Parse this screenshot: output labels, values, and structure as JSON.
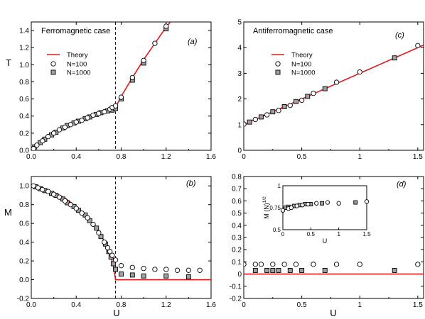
{
  "figure": {
    "y_labels": {
      "T": "T",
      "M": "M"
    },
    "x_label": "U",
    "legend": {
      "theory": "Theory",
      "n100": "N=100",
      "n1000": "N=1000"
    },
    "colors": {
      "theory": "#e31a1c",
      "square_fill": "#a0a0a0",
      "axis": "#000000"
    }
  },
  "chart_data": [
    {
      "id": "a",
      "type": "scatter",
      "title": "Ferromagnetic case",
      "tag": "(a)",
      "xlabel": "U",
      "ylabel": "T",
      "xlim": [
        0,
        1.6
      ],
      "ylim": [
        0,
        1.5
      ],
      "xticks": [
        "0.0",
        "0.4",
        "0.8",
        "1.2",
        "1.6"
      ],
      "yticks": [
        "0.0",
        "0.2",
        "0.4",
        "0.6",
        "0.8",
        "1.0",
        "1.2",
        "1.4"
      ],
      "vline": 0.75,
      "legend_position": "upper-left",
      "series": [
        {
          "name": "Theory",
          "kind": "line",
          "x": [
            0.0,
            0.05,
            0.1,
            0.2,
            0.3,
            0.4,
            0.5,
            0.6,
            0.7,
            0.75,
            0.8,
            0.9,
            1.0,
            1.1,
            1.2,
            1.25
          ],
          "y": [
            0.0,
            0.07,
            0.13,
            0.22,
            0.28,
            0.34,
            0.39,
            0.43,
            0.47,
            0.5,
            0.63,
            0.85,
            1.06,
            1.25,
            1.44,
            1.52
          ]
        },
        {
          "name": "N=100",
          "kind": "circle",
          "x": [
            0.02,
            0.05,
            0.1,
            0.15,
            0.2,
            0.25,
            0.3,
            0.35,
            0.4,
            0.45,
            0.5,
            0.55,
            0.6,
            0.65,
            0.7,
            0.72,
            0.75,
            0.8,
            0.9,
            1.0,
            1.1,
            1.2
          ],
          "y": [
            0.02,
            0.06,
            0.11,
            0.16,
            0.2,
            0.24,
            0.27,
            0.3,
            0.33,
            0.35,
            0.38,
            0.41,
            0.43,
            0.45,
            0.48,
            0.5,
            0.52,
            0.62,
            0.85,
            1.05,
            1.25,
            1.45
          ]
        },
        {
          "name": "N=1000",
          "kind": "square",
          "x": [
            0.03,
            0.08,
            0.12,
            0.18,
            0.22,
            0.28,
            0.32,
            0.38,
            0.42,
            0.48,
            0.52,
            0.58,
            0.62,
            0.68,
            0.72,
            0.75,
            0.8,
            0.9,
            1.0,
            1.2
          ],
          "y": [
            0.04,
            0.09,
            0.13,
            0.18,
            0.21,
            0.26,
            0.29,
            0.32,
            0.34,
            0.37,
            0.39,
            0.42,
            0.44,
            0.46,
            0.47,
            0.49,
            0.6,
            0.82,
            1.02,
            1.42
          ]
        }
      ]
    },
    {
      "id": "b",
      "type": "scatter",
      "title": "",
      "tag": "(b)",
      "xlabel": "U",
      "ylabel": "M",
      "xlim": [
        0,
        1.6
      ],
      "ylim": [
        -0.2,
        1.1
      ],
      "xticks": [
        "0.0",
        "0.4",
        "0.8",
        "1.2",
        "1.6"
      ],
      "yticks": [
        "-0.2",
        "0.0",
        "0.2",
        "0.4",
        "0.6",
        "0.8",
        "1.0"
      ],
      "vline": 0.75,
      "series": [
        {
          "name": "Theory",
          "kind": "line",
          "x": [
            0.0,
            0.1,
            0.2,
            0.3,
            0.4,
            0.5,
            0.6,
            0.65,
            0.7,
            0.73,
            0.75,
            0.75,
            1.6
          ],
          "y": [
            1.0,
            0.97,
            0.93,
            0.87,
            0.78,
            0.67,
            0.51,
            0.41,
            0.28,
            0.15,
            0.0,
            0.0,
            0.0
          ]
        },
        {
          "name": "N=100",
          "kind": "circle",
          "x": [
            0.02,
            0.06,
            0.1,
            0.15,
            0.2,
            0.25,
            0.3,
            0.35,
            0.4,
            0.45,
            0.5,
            0.55,
            0.6,
            0.65,
            0.68,
            0.7,
            0.72,
            0.75,
            0.8,
            0.9,
            1.0,
            1.1,
            1.2,
            1.3,
            1.4,
            1.5
          ],
          "y": [
            1.0,
            0.98,
            0.96,
            0.94,
            0.91,
            0.88,
            0.84,
            0.8,
            0.76,
            0.71,
            0.66,
            0.59,
            0.5,
            0.4,
            0.34,
            0.3,
            0.26,
            0.21,
            0.15,
            0.13,
            0.12,
            0.11,
            0.11,
            0.1,
            0.1,
            0.1
          ]
        },
        {
          "name": "N=1000",
          "kind": "square",
          "x": [
            0.04,
            0.08,
            0.12,
            0.18,
            0.22,
            0.28,
            0.32,
            0.38,
            0.42,
            0.48,
            0.52,
            0.58,
            0.62,
            0.66,
            0.69,
            0.71,
            0.73,
            0.75,
            0.8,
            0.9,
            1.0,
            1.2,
            1.4
          ],
          "y": [
            0.99,
            0.97,
            0.95,
            0.92,
            0.9,
            0.86,
            0.82,
            0.78,
            0.74,
            0.69,
            0.63,
            0.55,
            0.46,
            0.38,
            0.3,
            0.24,
            0.17,
            0.11,
            0.06,
            0.05,
            0.04,
            0.04,
            0.03
          ]
        }
      ]
    },
    {
      "id": "c",
      "type": "scatter",
      "title": "Antiferromagnetic case",
      "tag": "(c)",
      "xlabel": "U",
      "ylabel": "",
      "xlim": [
        0,
        1.55
      ],
      "ylim": [
        0,
        5
      ],
      "xticks": [
        "0",
        "0.5",
        "1",
        "1.5"
      ],
      "yticks": [
        "0",
        "1",
        "2",
        "3",
        "4",
        "5"
      ],
      "legend_position": "upper-left",
      "series": [
        {
          "name": "Theory",
          "kind": "line",
          "x": [
            0.0,
            1.55
          ],
          "y": [
            1.0,
            4.1
          ]
        },
        {
          "name": "N=100",
          "kind": "circle",
          "x": [
            0.0,
            0.1,
            0.2,
            0.3,
            0.4,
            0.5,
            0.6,
            0.8,
            1.0,
            1.5
          ],
          "y": [
            1.02,
            1.2,
            1.38,
            1.55,
            1.75,
            1.95,
            2.22,
            2.65,
            3.05,
            4.08
          ]
        },
        {
          "name": "N=1000",
          "kind": "square",
          "x": [
            0.05,
            0.15,
            0.25,
            0.35,
            0.45,
            0.55,
            0.7,
            1.3
          ],
          "y": [
            1.1,
            1.3,
            1.5,
            1.7,
            1.9,
            2.1,
            2.4,
            3.6
          ]
        }
      ]
    },
    {
      "id": "d",
      "type": "scatter",
      "title": "",
      "tag": "(d)",
      "xlabel": "U",
      "ylabel": "",
      "xlim": [
        0,
        1.55
      ],
      "ylim": [
        -0.2,
        0.8
      ],
      "xticks": [
        "0",
        "0.5",
        "1",
        "1.5"
      ],
      "yticks": [
        "-0.2",
        "-0.1",
        "0",
        "0.1",
        "0.2",
        "0.3",
        "0.4",
        "0.5",
        "0.6",
        "0.7",
        "0.8"
      ],
      "series": [
        {
          "name": "Theory",
          "kind": "line",
          "x": [
            0.0,
            1.55
          ],
          "y": [
            0.0,
            0.0
          ]
        },
        {
          "name": "N=100",
          "kind": "circle",
          "x": [
            0.0,
            0.1,
            0.15,
            0.25,
            0.35,
            0.45,
            0.6,
            0.8,
            1.0,
            1.5
          ],
          "y": [
            0.08,
            0.08,
            0.08,
            0.08,
            0.08,
            0.08,
            0.08,
            0.08,
            0.08,
            0.08
          ]
        },
        {
          "name": "N=1000",
          "kind": "square",
          "x": [
            0.1,
            0.2,
            0.25,
            0.3,
            0.4,
            0.5,
            0.7,
            1.3
          ],
          "y": [
            0.03,
            0.03,
            0.03,
            0.03,
            0.03,
            0.03,
            0.03,
            0.03
          ]
        }
      ],
      "inset": {
        "xlabel": "U",
        "ylabel": "M (N)",
        "ylabel_sup": "1/2",
        "xlim": [
          0,
          1.5
        ],
        "ylim": [
          0.5,
          1.0
        ],
        "xticks": [
          "0",
          "0.5",
          "1",
          "1.5"
        ],
        "yticks": [
          "0.5",
          "0.75",
          "1"
        ],
        "series": [
          {
            "name": "N=100",
            "kind": "circle",
            "x": [
              0.0,
              0.1,
              0.15,
              0.25,
              0.35,
              0.45,
              0.6,
              0.8,
              1.0,
              1.5
            ],
            "y": [
              0.72,
              0.74,
              0.75,
              0.77,
              0.78,
              0.79,
              0.8,
              0.81,
              0.8,
              0.82
            ]
          },
          {
            "name": "N=1000",
            "kind": "square",
            "x": [
              0.05,
              0.1,
              0.2,
              0.3,
              0.4,
              0.5,
              0.7,
              1.3
            ],
            "y": [
              0.75,
              0.76,
              0.77,
              0.78,
              0.79,
              0.79,
              0.8,
              0.81
            ]
          }
        ]
      }
    }
  ]
}
